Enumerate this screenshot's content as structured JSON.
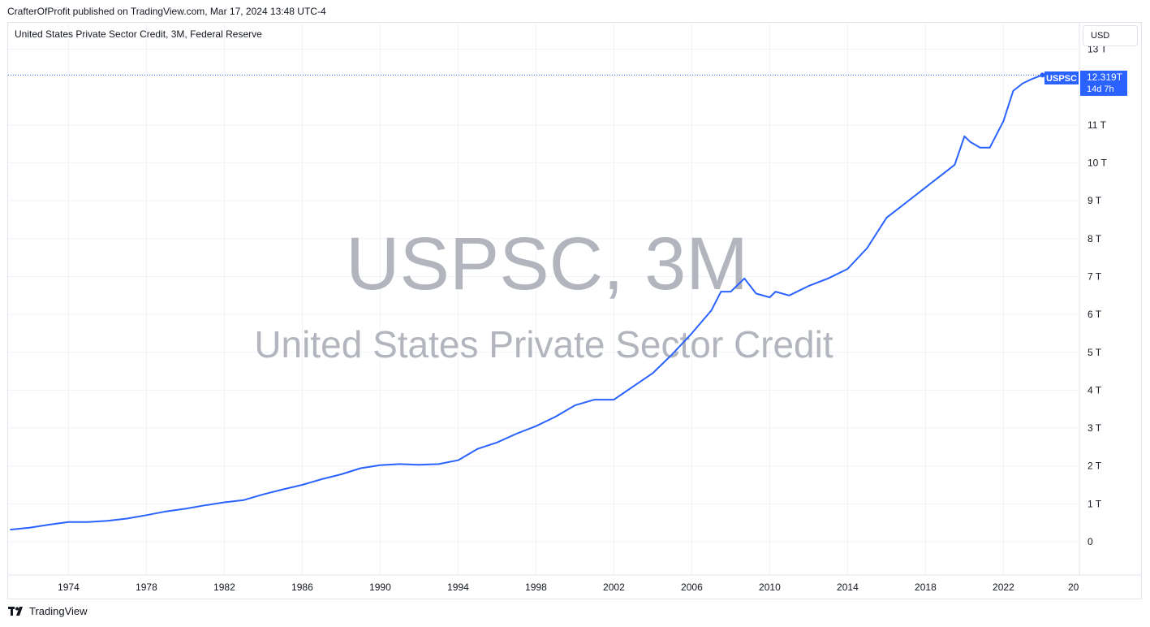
{
  "header": {
    "publisher_line": "CrafterOfProfit published on TradingView.com, Mar 17, 2024 13:48 UTC-4"
  },
  "legend": {
    "title": "United States Private Sector Credit, 3M, Federal Reserve"
  },
  "currency_button": {
    "label": "USD"
  },
  "watermark": {
    "symbol": "USPSC, 3M",
    "description": "United States Private Sector Credit"
  },
  "price_tag": {
    "symbol": "USPSC",
    "value": "12.319T",
    "countdown": "14d 7h"
  },
  "footer": {
    "brand": "TradingView"
  },
  "colors": {
    "line": "#2962ff",
    "grid": "#f0f3fa",
    "tag_bg": "#2962ff",
    "watermark": "#b2b5be"
  },
  "chart_data": {
    "type": "line",
    "title": "United States Private Sector Credit, 3M, Federal Reserve",
    "xlabel": "",
    "ylabel": "",
    "y_unit": "T (USD trillions)",
    "ylim": [
      0,
      13
    ],
    "y_ticks": [
      "0",
      "1 T",
      "2 T",
      "3 T",
      "4 T",
      "5 T",
      "6 T",
      "7 T",
      "8 T",
      "9 T",
      "10 T",
      "11 T",
      "13 T"
    ],
    "y_tick_values": [
      0,
      1,
      2,
      3,
      4,
      5,
      6,
      7,
      8,
      9,
      10,
      11,
      13
    ],
    "x_ticks": [
      "1974",
      "1978",
      "1982",
      "1986",
      "1990",
      "1994",
      "1998",
      "2002",
      "2006",
      "2010",
      "2014",
      "2018",
      "2022",
      "20"
    ],
    "x_tick_values": [
      1974,
      1978,
      1982,
      1986,
      1990,
      1994,
      1998,
      2002,
      2006,
      2010,
      2014,
      2018,
      2022,
      2026
    ],
    "grid": true,
    "series": [
      {
        "name": "USPSC",
        "x": [
          1971.0,
          1972.0,
          1973.0,
          1974.0,
          1975.0,
          1976.0,
          1977.0,
          1978.0,
          1979.0,
          1980.0,
          1981.0,
          1982.0,
          1983.0,
          1984.0,
          1985.0,
          1986.0,
          1987.0,
          1988.0,
          1989.0,
          1990.0,
          1991.0,
          1992.0,
          1993.0,
          1994.0,
          1995.0,
          1996.0,
          1997.0,
          1998.0,
          1999.0,
          2000.0,
          2001.0,
          2002.0,
          2003.0,
          2004.0,
          2005.0,
          2006.0,
          2007.0,
          2007.5,
          2008.0,
          2008.7,
          2009.3,
          2010.0,
          2010.3,
          2011.0,
          2012.0,
          2013.0,
          2014.0,
          2015.0,
          2016.0,
          2017.0,
          2018.0,
          2019.0,
          2019.5,
          2020.0,
          2020.3,
          2020.8,
          2021.3,
          2022.0,
          2022.5,
          2023.0,
          2023.5,
          2024.0
        ],
        "y": [
          0.32,
          0.37,
          0.45,
          0.52,
          0.52,
          0.55,
          0.61,
          0.7,
          0.8,
          0.87,
          0.96,
          1.04,
          1.1,
          1.25,
          1.38,
          1.5,
          1.65,
          1.78,
          1.94,
          2.02,
          2.05,
          2.03,
          2.05,
          2.15,
          2.45,
          2.62,
          2.85,
          3.05,
          3.3,
          3.6,
          3.75,
          3.75,
          4.1,
          4.45,
          4.95,
          5.5,
          6.1,
          6.6,
          6.6,
          6.95,
          6.55,
          6.45,
          6.6,
          6.5,
          6.75,
          6.95,
          7.2,
          7.75,
          8.55,
          8.95,
          9.35,
          9.75,
          9.95,
          10.7,
          10.55,
          10.4,
          10.4,
          11.1,
          11.9,
          12.1,
          12.22,
          12.319
        ]
      }
    ]
  }
}
